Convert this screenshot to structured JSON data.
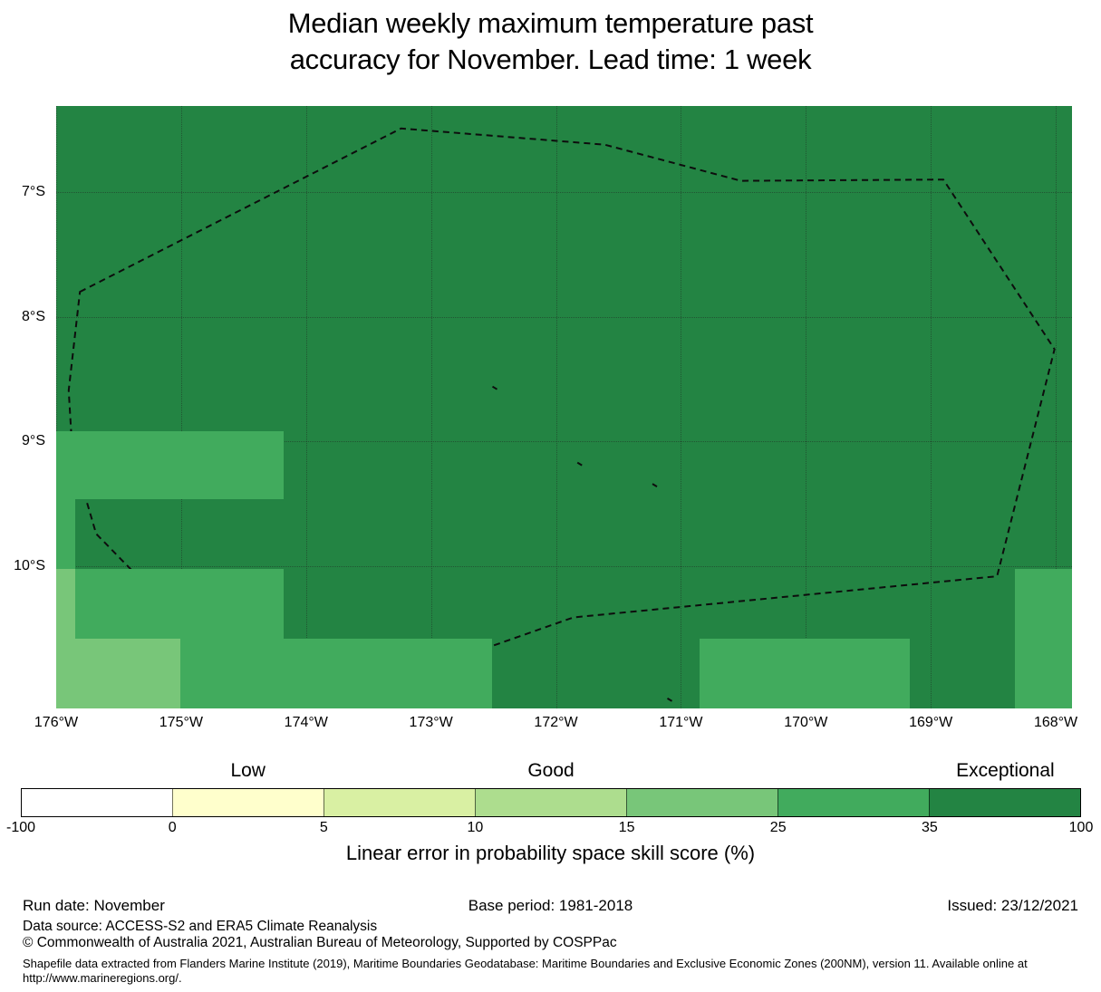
{
  "title": {
    "line1": "Median weekly maximum temperature past",
    "line2": "accuracy for November. Lead time: 1 week"
  },
  "chart_data": {
    "type": "heatmap",
    "description": "Gridded map of forecast skill (LEPS score %) over the Tokelau EEZ region, with dashed EEZ boundary outline",
    "lon_range_w": [
      176.0,
      167.87
    ],
    "lat_range_s": [
      6.31,
      11.14
    ],
    "x_ticks": [
      [
        176,
        "176°W"
      ],
      [
        175,
        "175°W"
      ],
      [
        174,
        "174°W"
      ],
      [
        173,
        "173°W"
      ],
      [
        172,
        "172°W"
      ],
      [
        171,
        "171°W"
      ],
      [
        170,
        "170°W"
      ],
      [
        169,
        "169°W"
      ],
      [
        168,
        "168°W"
      ]
    ],
    "y_ticks": [
      [
        7,
        "7°S"
      ],
      [
        8,
        "8°S"
      ],
      [
        9,
        "9°S"
      ],
      [
        10,
        "10°S"
      ]
    ],
    "grid_on": true,
    "background_category": "35-100",
    "categories": {
      "15-25": "#78c679",
      "25-35": "#41ab5d",
      "35-100": "#238443"
    },
    "regions": [
      {
        "lon_w": [
          176.0,
          174.18
        ],
        "lat_s": [
          8.92,
          9.46
        ],
        "category": "25-35"
      },
      {
        "lon_w": [
          176.0,
          175.85
        ],
        "lat_s": [
          9.46,
          10.02
        ],
        "category": "25-35"
      },
      {
        "lon_w": [
          176.0,
          175.85
        ],
        "lat_s": [
          10.02,
          10.58
        ],
        "category": "15-25"
      },
      {
        "lon_w": [
          175.85,
          174.18
        ],
        "lat_s": [
          10.02,
          10.58
        ],
        "category": "25-35"
      },
      {
        "lon_w": [
          176.0,
          175.01
        ],
        "lat_s": [
          10.58,
          11.14
        ],
        "category": "15-25"
      },
      {
        "lon_w": [
          175.01,
          172.51
        ],
        "lat_s": [
          10.58,
          11.14
        ],
        "category": "25-35"
      },
      {
        "lon_w": [
          170.85,
          169.17
        ],
        "lat_s": [
          10.58,
          11.14
        ],
        "category": "25-35"
      },
      {
        "lon_w": [
          168.33,
          167.87
        ],
        "lat_s": [
          10.02,
          11.14
        ],
        "category": "25-35"
      }
    ],
    "eez_boundary": [
      [
        175.81,
        7.8
      ],
      [
        173.24,
        6.49
      ],
      [
        171.61,
        6.62
      ],
      [
        170.52,
        6.91
      ],
      [
        168.9,
        6.9
      ],
      [
        168.01,
        8.26
      ],
      [
        168.47,
        10.08
      ],
      [
        171.86,
        10.41
      ],
      [
        173.79,
        11.09
      ],
      [
        174.26,
        10.98
      ],
      [
        174.76,
        10.65
      ],
      [
        175.3,
        10.13
      ],
      [
        175.68,
        9.74
      ],
      [
        175.87,
        9.09
      ],
      [
        175.9,
        8.59
      ]
    ],
    "islands": [
      [
        172.49,
        8.57
      ],
      [
        171.81,
        9.18
      ],
      [
        171.21,
        9.35
      ],
      [
        171.09,
        11.07
      ]
    ]
  },
  "colorbar": {
    "quality_labels": [
      {
        "text": "Low",
        "segment": 1
      },
      {
        "text": "Good",
        "segment": 3
      },
      {
        "text": "Exceptional",
        "segment": 6
      }
    ],
    "boundaries": [
      "-100",
      "0",
      "5",
      "10",
      "15",
      "25",
      "35",
      "100"
    ],
    "segment_colors": [
      "#ffffff",
      "#ffffcc",
      "#d9f0a3",
      "#addd8e",
      "#78c679",
      "#41ab5d",
      "#238443"
    ],
    "caption": "Linear error in probability space skill score (%)"
  },
  "footer": {
    "run_date": "Run date: November",
    "base_period": "Base period: 1981-2018",
    "issued": "Issued: 23/12/2021",
    "data_source": "Data source: ACCESS-S2 and ERA5 Climate Reanalysis",
    "copyright": "© Commonwealth of Australia 2021, Australian Bureau of Meteorology, Supported by COSPPac",
    "shapefile_line1": "Shapefile data extracted from Flanders Marine Institute (2019), Maritime Boundaries Geodatabase: Maritime Boundaries and Exclusive Economic Zones (200NM), version 11. Available online at",
    "shapefile_line2": "http://www.marineregions.org/."
  }
}
